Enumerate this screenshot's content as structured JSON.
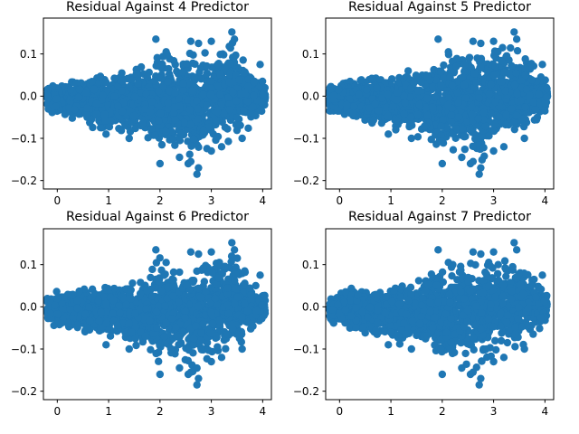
{
  "figure": {
    "background": "#ffffff"
  },
  "chart_data": [
    {
      "type": "scatter",
      "title": "Residual Against 4 Predictor",
      "xlabel": "",
      "ylabel": "",
      "xlim": [
        -0.27,
        4.17
      ],
      "ylim": [
        -0.22,
        0.185
      ],
      "xticks": [
        0,
        1,
        2,
        3,
        4
      ],
      "yticks": [
        -0.2,
        -0.1,
        0.0,
        0.1
      ],
      "xtick_labels": [
        "0",
        "1",
        "2",
        "3",
        "4"
      ],
      "ytick_labels": [
        "−0.2",
        "−0.1",
        "0.0",
        "0.1"
      ],
      "grid": false,
      "legend": false,
      "series": [
        {
          "color": "#1f77b4",
          "marker": "circle"
        }
      ],
      "envelope": [
        [
          -0.2,
          -0.04,
          0.03
        ],
        [
          0.2,
          -0.06,
          0.05
        ],
        [
          0.6,
          -0.08,
          0.06
        ],
        [
          1.0,
          -0.09,
          0.065
        ],
        [
          1.4,
          -0.1,
          0.07
        ],
        [
          1.8,
          -0.12,
          0.09
        ],
        [
          2.0,
          -0.16,
          0.135
        ],
        [
          2.4,
          -0.15,
          0.13
        ],
        [
          2.7,
          -0.185,
          0.13
        ],
        [
          3.0,
          -0.13,
          0.13
        ],
        [
          3.4,
          -0.12,
          0.15
        ],
        [
          3.8,
          -0.08,
          0.08
        ],
        [
          4.05,
          -0.04,
          0.035
        ]
      ],
      "outliers": [
        [
          1.92,
          0.135
        ],
        [
          2.12,
          0.105
        ],
        [
          2.6,
          0.13
        ],
        [
          2.75,
          0.125
        ],
        [
          3.0,
          0.13
        ],
        [
          3.4,
          0.152
        ],
        [
          3.45,
          0.135
        ],
        [
          3.95,
          0.075
        ],
        [
          2.0,
          -0.16
        ],
        [
          2.38,
          -0.145
        ],
        [
          2.55,
          -0.16
        ],
        [
          2.6,
          -0.155
        ],
        [
          2.72,
          -0.185
        ],
        [
          2.75,
          -0.17
        ],
        [
          3.0,
          -0.13
        ],
        [
          3.2,
          -0.12
        ],
        [
          3.6,
          -0.1
        ],
        [
          0.95,
          -0.09
        ],
        [
          1.4,
          -0.1
        ]
      ]
    },
    {
      "type": "scatter",
      "title": "Residual Against 5 Predictor",
      "xlabel": "",
      "ylabel": "",
      "xlim": [
        -0.27,
        4.17
      ],
      "ylim": [
        -0.22,
        0.185
      ],
      "xticks": [
        0,
        1,
        2,
        3,
        4
      ],
      "yticks": [
        -0.2,
        -0.1,
        0.0,
        0.1
      ],
      "xtick_labels": [
        "0",
        "1",
        "2",
        "3",
        "4"
      ],
      "ytick_labels": [
        "−0.2",
        "−0.1",
        "0.0",
        "0.1"
      ],
      "grid": false,
      "legend": false,
      "series": [
        {
          "color": "#1f77b4",
          "marker": "circle"
        }
      ],
      "envelope": [
        [
          -0.2,
          -0.04,
          0.03
        ],
        [
          0.2,
          -0.06,
          0.05
        ],
        [
          0.6,
          -0.08,
          0.06
        ],
        [
          1.0,
          -0.09,
          0.065
        ],
        [
          1.4,
          -0.1,
          0.07
        ],
        [
          1.8,
          -0.12,
          0.09
        ],
        [
          2.0,
          -0.16,
          0.135
        ],
        [
          2.4,
          -0.15,
          0.13
        ],
        [
          2.7,
          -0.185,
          0.13
        ],
        [
          3.0,
          -0.13,
          0.13
        ],
        [
          3.4,
          -0.12,
          0.15
        ],
        [
          3.8,
          -0.08,
          0.08
        ],
        [
          4.05,
          -0.04,
          0.035
        ]
      ],
      "outliers": [
        [
          1.92,
          0.135
        ],
        [
          2.12,
          0.105
        ],
        [
          2.6,
          0.13
        ],
        [
          2.75,
          0.125
        ],
        [
          3.0,
          0.13
        ],
        [
          3.4,
          0.152
        ],
        [
          3.45,
          0.135
        ],
        [
          3.95,
          0.075
        ],
        [
          2.0,
          -0.16
        ],
        [
          2.38,
          -0.145
        ],
        [
          2.55,
          -0.16
        ],
        [
          2.6,
          -0.155
        ],
        [
          2.72,
          -0.185
        ],
        [
          2.75,
          -0.17
        ],
        [
          3.0,
          -0.13
        ],
        [
          3.2,
          -0.12
        ],
        [
          3.6,
          -0.1
        ],
        [
          0.95,
          -0.09
        ],
        [
          1.4,
          -0.1
        ]
      ]
    },
    {
      "type": "scatter",
      "title": "Residual Against 6 Predictor",
      "xlabel": "",
      "ylabel": "",
      "xlim": [
        -0.27,
        4.17
      ],
      "ylim": [
        -0.22,
        0.185
      ],
      "xticks": [
        0,
        1,
        2,
        3,
        4
      ],
      "yticks": [
        -0.2,
        -0.1,
        0.0,
        0.1
      ],
      "xtick_labels": [
        "0",
        "1",
        "2",
        "3",
        "4"
      ],
      "ytick_labels": [
        "−0.2",
        "−0.1",
        "0.0",
        "0.1"
      ],
      "grid": false,
      "legend": false,
      "series": [
        {
          "color": "#1f77b4",
          "marker": "circle"
        }
      ],
      "envelope": [
        [
          -0.2,
          -0.04,
          0.03
        ],
        [
          0.2,
          -0.06,
          0.05
        ],
        [
          0.6,
          -0.08,
          0.06
        ],
        [
          1.0,
          -0.09,
          0.065
        ],
        [
          1.4,
          -0.1,
          0.07
        ],
        [
          1.8,
          -0.12,
          0.09
        ],
        [
          2.0,
          -0.16,
          0.135
        ],
        [
          2.4,
          -0.15,
          0.13
        ],
        [
          2.7,
          -0.185,
          0.13
        ],
        [
          3.0,
          -0.13,
          0.13
        ],
        [
          3.4,
          -0.12,
          0.15
        ],
        [
          3.8,
          -0.08,
          0.08
        ],
        [
          4.05,
          -0.04,
          0.035
        ]
      ],
      "outliers": [
        [
          1.92,
          0.135
        ],
        [
          2.12,
          0.105
        ],
        [
          2.6,
          0.13
        ],
        [
          2.75,
          0.125
        ],
        [
          3.0,
          0.13
        ],
        [
          3.4,
          0.152
        ],
        [
          3.45,
          0.135
        ],
        [
          3.95,
          0.075
        ],
        [
          2.0,
          -0.16
        ],
        [
          2.38,
          -0.145
        ],
        [
          2.55,
          -0.16
        ],
        [
          2.6,
          -0.155
        ],
        [
          2.72,
          -0.185
        ],
        [
          2.75,
          -0.17
        ],
        [
          3.0,
          -0.13
        ],
        [
          3.2,
          -0.12
        ],
        [
          3.6,
          -0.1
        ],
        [
          0.95,
          -0.09
        ],
        [
          1.4,
          -0.1
        ]
      ]
    },
    {
      "type": "scatter",
      "title": "Residual Against 7 Predictor",
      "xlabel": "",
      "ylabel": "",
      "xlim": [
        -0.27,
        4.17
      ],
      "ylim": [
        -0.22,
        0.185
      ],
      "xticks": [
        0,
        1,
        2,
        3,
        4
      ],
      "yticks": [
        -0.2,
        -0.1,
        0.0,
        0.1
      ],
      "xtick_labels": [
        "0",
        "1",
        "2",
        "3",
        "4"
      ],
      "ytick_labels": [
        "−0.2",
        "−0.1",
        "0.0",
        "0.1"
      ],
      "grid": false,
      "legend": false,
      "series": [
        {
          "color": "#1f77b4",
          "marker": "circle"
        }
      ],
      "envelope": [
        [
          -0.2,
          -0.04,
          0.03
        ],
        [
          0.2,
          -0.06,
          0.05
        ],
        [
          0.6,
          -0.08,
          0.06
        ],
        [
          1.0,
          -0.09,
          0.065
        ],
        [
          1.4,
          -0.1,
          0.07
        ],
        [
          1.8,
          -0.12,
          0.09
        ],
        [
          2.0,
          -0.16,
          0.135
        ],
        [
          2.4,
          -0.15,
          0.13
        ],
        [
          2.7,
          -0.185,
          0.13
        ],
        [
          3.0,
          -0.13,
          0.13
        ],
        [
          3.4,
          -0.12,
          0.15
        ],
        [
          3.8,
          -0.08,
          0.08
        ],
        [
          4.05,
          -0.04,
          0.035
        ]
      ],
      "outliers": [
        [
          1.92,
          0.135
        ],
        [
          2.12,
          0.105
        ],
        [
          2.6,
          0.13
        ],
        [
          2.75,
          0.125
        ],
        [
          3.0,
          0.13
        ],
        [
          3.4,
          0.152
        ],
        [
          3.45,
          0.135
        ],
        [
          3.95,
          0.075
        ],
        [
          2.0,
          -0.16
        ],
        [
          2.38,
          -0.145
        ],
        [
          2.55,
          -0.16
        ],
        [
          2.6,
          -0.155
        ],
        [
          2.72,
          -0.185
        ],
        [
          2.75,
          -0.17
        ],
        [
          3.0,
          -0.13
        ],
        [
          3.2,
          -0.12
        ],
        [
          3.6,
          -0.1
        ],
        [
          0.95,
          -0.09
        ],
        [
          1.4,
          -0.1
        ]
      ]
    }
  ]
}
